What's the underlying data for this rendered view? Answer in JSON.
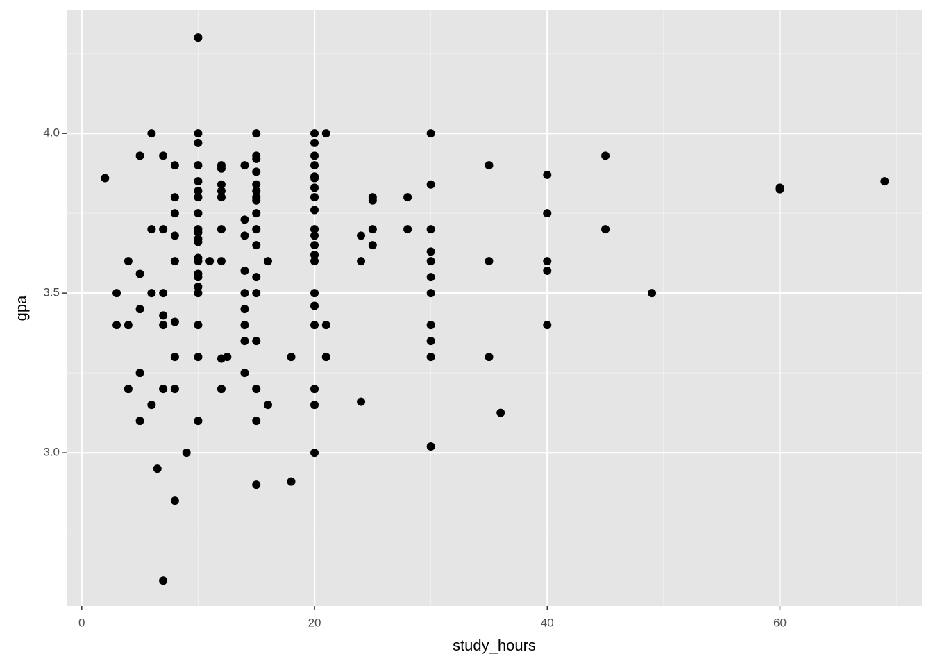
{
  "chart_data": {
    "type": "scatter",
    "x_label": "study_hours",
    "y_label": "gpa",
    "x": [
      2,
      3,
      3,
      4,
      4,
      4,
      5,
      5,
      5,
      5,
      5,
      6,
      6,
      6,
      6,
      6.5,
      7,
      7,
      7,
      7,
      7,
      7,
      7,
      8,
      8,
      8,
      8,
      8,
      8,
      8,
      8,
      8,
      9,
      10,
      10,
      10,
      10,
      10,
      10,
      10,
      10,
      10,
      10,
      10,
      10,
      10,
      10,
      10,
      10,
      10,
      10,
      10,
      10,
      10,
      11,
      12,
      12,
      12,
      12,
      12,
      12,
      12,
      12,
      12,
      12.5,
      14,
      14,
      14,
      14,
      14,
      14,
      14,
      14,
      14,
      15,
      15,
      15,
      15,
      15,
      15,
      15,
      15,
      15,
      15,
      15,
      15,
      15,
      15,
      15,
      15,
      15,
      16,
      16,
      18,
      18,
      20,
      20,
      20,
      20,
      20,
      20,
      20,
      20,
      20,
      20,
      20,
      20,
      20,
      20,
      20,
      20,
      20,
      20,
      20,
      20,
      21,
      21,
      21,
      24,
      24,
      24,
      25,
      25,
      25,
      25,
      28,
      28,
      30,
      30,
      30,
      30,
      30,
      30,
      30,
      30,
      30,
      30,
      30,
      35,
      35,
      35,
      36,
      40,
      40,
      40,
      40,
      40,
      45,
      45,
      49,
      60,
      60,
      69
    ],
    "y": [
      3.86,
      3.5,
      3.4,
      3.6,
      3.4,
      3.2,
      3.93,
      3.56,
      3.45,
      3.25,
      3.1,
      4.0,
      3.7,
      3.5,
      3.15,
      2.95,
      3.93,
      3.7,
      3.5,
      3.43,
      3.4,
      3.2,
      2.6,
      3.9,
      3.8,
      3.75,
      3.68,
      3.6,
      3.41,
      3.3,
      3.2,
      2.85,
      3.0,
      4.3,
      4.0,
      3.97,
      3.9,
      3.85,
      3.82,
      3.8,
      3.75,
      3.7,
      3.69,
      3.67,
      3.66,
      3.61,
      3.6,
      3.56,
      3.55,
      3.52,
      3.5,
      3.4,
      3.3,
      3.1,
      3.6,
      3.9,
      3.89,
      3.84,
      3.82,
      3.8,
      3.7,
      3.6,
      3.295,
      3.2,
      3.3,
      3.9,
      3.73,
      3.68,
      3.57,
      3.5,
      3.45,
      3.4,
      3.35,
      3.25,
      4.0,
      3.93,
      3.92,
      3.88,
      3.84,
      3.82,
      3.8,
      3.79,
      3.75,
      3.7,
      3.65,
      3.55,
      3.5,
      3.35,
      3.2,
      3.1,
      2.9,
      3.6,
      3.15,
      3.3,
      2.91,
      4.0,
      3.97,
      3.93,
      3.9,
      3.865,
      3.86,
      3.83,
      3.8,
      3.76,
      3.7,
      3.68,
      3.65,
      3.62,
      3.6,
      3.5,
      3.46,
      3.4,
      3.2,
      3.15,
      3.0,
      4.0,
      3.4,
      3.3,
      3.68,
      3.6,
      3.16,
      3.8,
      3.79,
      3.7,
      3.65,
      3.8,
      3.7,
      4.0,
      3.84,
      3.7,
      3.63,
      3.6,
      3.55,
      3.5,
      3.4,
      3.35,
      3.3,
      3.02,
      3.9,
      3.6,
      3.3,
      3.125,
      3.87,
      3.75,
      3.6,
      3.57,
      3.4,
      3.93,
      3.7,
      3.5,
      3.83,
      3.825,
      3.85
    ],
    "color": "#000000",
    "xlim": [
      -1.3,
      72.2
    ],
    "ylim": [
      2.52,
      4.385
    ],
    "xticks": [
      0,
      20,
      40,
      60
    ],
    "yticks": [
      {
        "value": 3.0,
        "label": "3.0"
      },
      {
        "value": 3.5,
        "label": "3.5"
      },
      {
        "value": 4.0,
        "label": "4.0"
      }
    ],
    "grid": true
  }
}
